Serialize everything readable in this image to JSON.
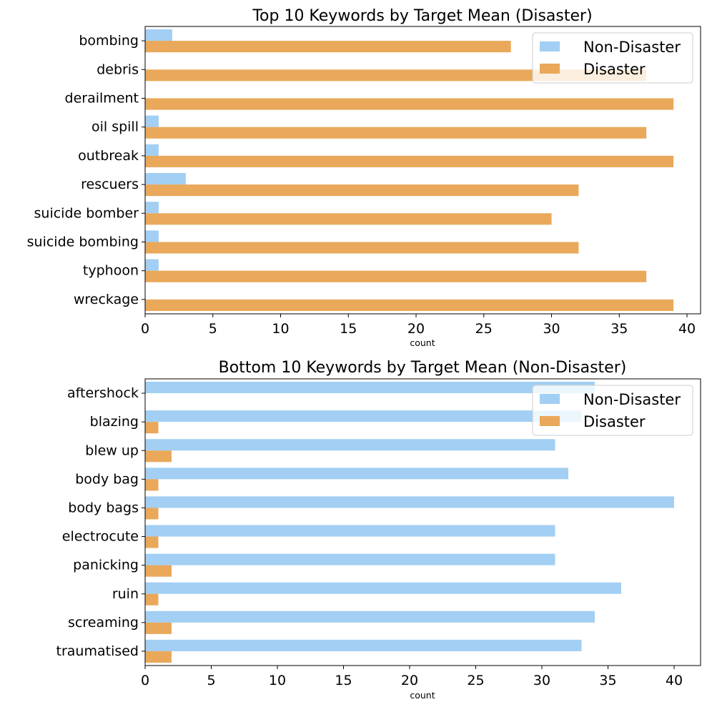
{
  "colors": {
    "non_disaster": "#A2CFF3",
    "disaster": "#E9A85A",
    "axis": "#000000",
    "legend_border": "#CCCCCC"
  },
  "chart_data": [
    {
      "id": "top",
      "type": "bar",
      "orientation": "horizontal",
      "title": "Top 10 Keywords by Target Mean (Disaster)",
      "xlabel": "count",
      "ylabel": "",
      "xlim": [
        0,
        41
      ],
      "xticks": [
        0,
        5,
        10,
        15,
        20,
        25,
        30,
        35,
        40
      ],
      "categories": [
        "bombing",
        "debris",
        "derailment",
        "oil spill",
        "outbreak",
        "rescuers",
        "suicide bomber",
        "suicide bombing",
        "typhoon",
        "wreckage"
      ],
      "series": [
        {
          "name": "Non-Disaster",
          "color_key": "non_disaster",
          "values": [
            2,
            0,
            0,
            1,
            1,
            3,
            1,
            1,
            1,
            0
          ]
        },
        {
          "name": "Disaster",
          "color_key": "disaster",
          "values": [
            27,
            37,
            39,
            37,
            39,
            32,
            30,
            32,
            37,
            39
          ]
        }
      ],
      "legend": "top-right",
      "grid": false
    },
    {
      "id": "bottom",
      "type": "bar",
      "orientation": "horizontal",
      "title": "Bottom 10 Keywords by Target Mean (Non-Disaster)",
      "xlabel": "count",
      "ylabel": "",
      "xlim": [
        0,
        42
      ],
      "xticks": [
        0,
        5,
        10,
        15,
        20,
        25,
        30,
        35,
        40
      ],
      "categories": [
        "aftershock",
        "blazing",
        "blew up",
        "body bag",
        "body bags",
        "electrocute",
        "panicking",
        "ruin",
        "screaming",
        "traumatised"
      ],
      "series": [
        {
          "name": "Non-Disaster",
          "color_key": "non_disaster",
          "values": [
            34,
            33,
            31,
            32,
            40,
            31,
            31,
            36,
            34,
            33
          ]
        },
        {
          "name": "Disaster",
          "color_key": "disaster",
          "values": [
            0,
            1,
            2,
            1,
            1,
            1,
            2,
            1,
            2,
            2
          ]
        }
      ],
      "legend": "top-right",
      "grid": false
    }
  ]
}
